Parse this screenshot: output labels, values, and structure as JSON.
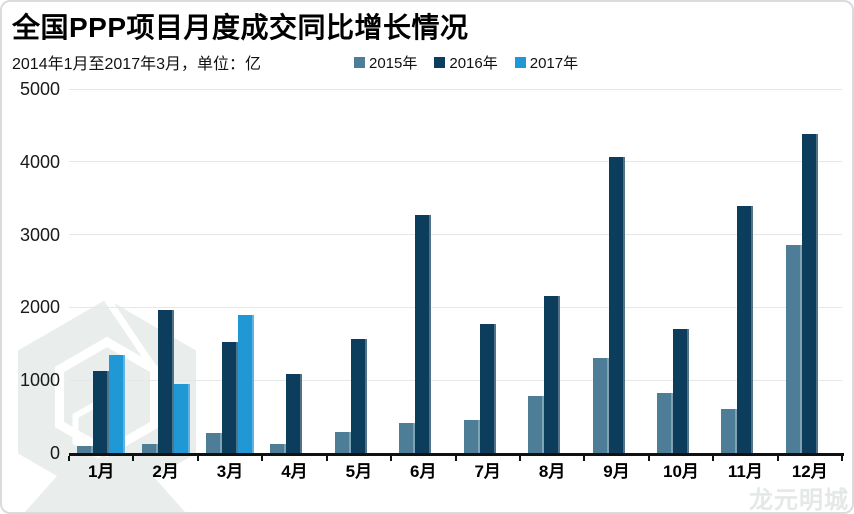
{
  "page": {
    "title": "全国PPP项目月度成交同比增长情况",
    "subtitle": "2014年1月至2017年3月，单位：亿",
    "watermark_text": "龙元明城"
  },
  "colors": {
    "series_2015": "#4e7e97",
    "series_2016": "#0d3d5c",
    "series_2017": "#2098d6",
    "gridline": "#e6e8e8",
    "axis": "#111111",
    "watermark": "#e9edec"
  },
  "chart_data": {
    "type": "bar",
    "title": "全国PPP项目月度成交同比增长情况",
    "subtitle": "2014年1月至2017年3月，单位：亿",
    "categories": [
      "1月",
      "2月",
      "3月",
      "4月",
      "5月",
      "6月",
      "7月",
      "8月",
      "9月",
      "10月",
      "11月",
      "12月"
    ],
    "series": [
      {
        "name": "2015年",
        "color": "#4e7e97",
        "values": [
          90,
          120,
          280,
          130,
          290,
          410,
          450,
          780,
          1300,
          820,
          600,
          2860
        ]
      },
      {
        "name": "2016年",
        "color": "#0d3d5c",
        "values": [
          1120,
          1960,
          1530,
          1080,
          1560,
          3270,
          1770,
          2150,
          4060,
          1700,
          3390,
          4380
        ]
      },
      {
        "name": "2017年",
        "color": "#2098d6",
        "values": [
          1340,
          950,
          1890,
          null,
          null,
          null,
          null,
          null,
          null,
          null,
          null,
          null
        ]
      }
    ],
    "xlabel": "",
    "ylabel": "",
    "y_ticks": [
      0,
      1000,
      2000,
      3000,
      4000,
      5000
    ],
    "ylim": [
      0,
      5000
    ],
    "grid": "horizontal",
    "legend_position": "top"
  }
}
